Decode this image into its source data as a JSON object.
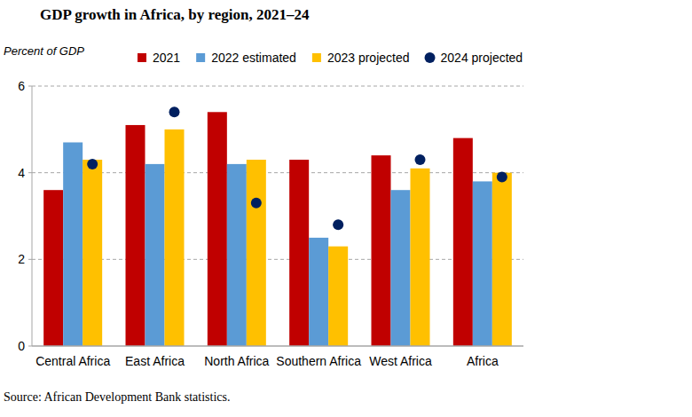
{
  "chart_data": {
    "type": "bar",
    "title": "GDP growth in Africa, by region, 2021–24",
    "y_label": "Percent of GDP",
    "source": "Source: African Development Bank statistics.",
    "categories": [
      "Central Africa",
      "East Africa",
      "North Africa",
      "Southern Africa",
      "West Africa",
      "Africa"
    ],
    "series": [
      {
        "name": "2021",
        "color": "#c00000",
        "type": "bar",
        "values": [
          3.6,
          5.1,
          5.4,
          4.3,
          4.4,
          4.8
        ]
      },
      {
        "name": "2022 estimated",
        "color": "#5b9bd5",
        "type": "bar",
        "values": [
          4.7,
          4.2,
          4.2,
          2.5,
          3.6,
          3.8
        ]
      },
      {
        "name": "2023 projected",
        "color": "#ffc000",
        "type": "bar",
        "values": [
          4.3,
          5.0,
          4.3,
          2.3,
          4.1,
          4.0
        ]
      },
      {
        "name": "2024 projected",
        "color": "#002060",
        "type": "scatter",
        "marker": "circle",
        "values": [
          4.2,
          5.4,
          3.3,
          2.8,
          4.3,
          3.9
        ]
      }
    ],
    "ylim": [
      0,
      6
    ],
    "yticks": [
      0,
      2,
      4,
      6
    ],
    "grid": true,
    "legend": "top"
  }
}
